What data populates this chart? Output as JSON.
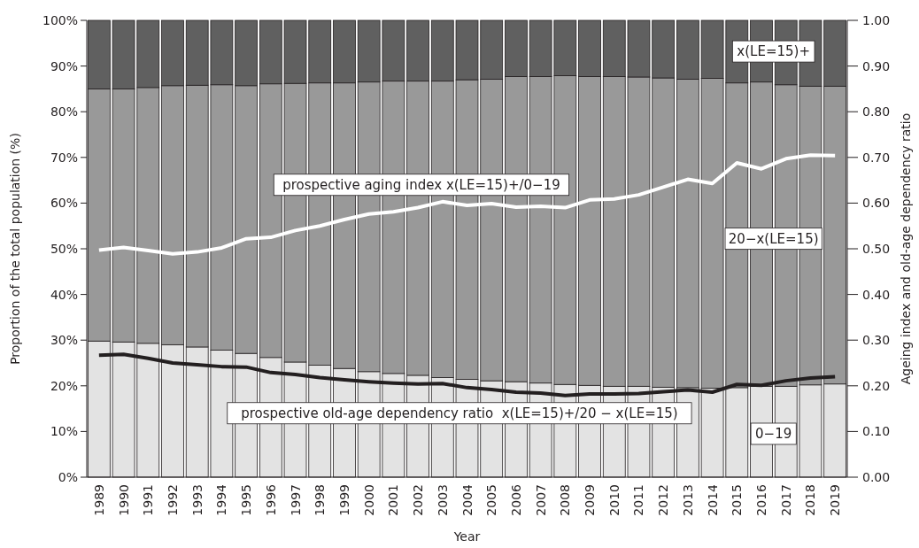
{
  "chart_data": {
    "type": "bar",
    "stacked": true,
    "xlabel": "Year",
    "ylabel": "Proportion of the total population (%)",
    "y2label": "Ageing index and old-age dependency ratio",
    "categories": [
      "1989",
      "1990",
      "1991",
      "1992",
      "1993",
      "1994",
      "1995",
      "1996",
      "1997",
      "1998",
      "1999",
      "2000",
      "2001",
      "2002",
      "2003",
      "2004",
      "2005",
      "2006",
      "2007",
      "2008",
      "2009",
      "2010",
      "2011",
      "2012",
      "2013",
      "2014",
      "2015",
      "2016",
      "2017",
      "2018",
      "2019"
    ],
    "series": [
      {
        "name": "0−19",
        "color": "#e3e3e3",
        "values": [
          29.8,
          29.6,
          29.3,
          29.0,
          28.5,
          27.8,
          27.1,
          26.2,
          25.2,
          24.5,
          23.8,
          23.1,
          22.7,
          22.3,
          21.8,
          21.4,
          21.1,
          20.9,
          20.6,
          20.3,
          20.1,
          19.9,
          19.9,
          19.7,
          19.6,
          19.5,
          19.6,
          19.9,
          19.9,
          20.2,
          20.4
        ]
      },
      {
        "name": "20−x(LE=15)",
        "color": "#999999",
        "values": [
          55.2,
          55.4,
          56.0,
          56.7,
          57.3,
          58.1,
          58.6,
          59.9,
          61.0,
          61.8,
          62.5,
          63.4,
          64.0,
          64.4,
          64.9,
          65.6,
          66.0,
          66.8,
          67.1,
          67.6,
          67.6,
          67.8,
          67.7,
          67.7,
          67.5,
          67.8,
          66.7,
          66.6,
          66.0,
          65.4,
          65.2
        ]
      },
      {
        "name": "x(LE=15)+",
        "color": "#606060",
        "values": [
          15.0,
          15.0,
          14.7,
          14.3,
          14.2,
          14.1,
          14.3,
          13.9,
          13.8,
          13.7,
          13.7,
          13.5,
          13.3,
          13.3,
          13.3,
          13.0,
          12.9,
          12.3,
          12.3,
          12.1,
          12.3,
          12.3,
          12.4,
          12.6,
          12.9,
          12.7,
          13.7,
          13.5,
          14.1,
          14.4,
          14.4
        ]
      },
      {
        "name": "prospective aging index x(LE=15)+/0−19",
        "type": "line",
        "axis": "y2",
        "color": "#ffffff",
        "values": [
          0.497,
          0.503,
          0.496,
          0.489,
          0.493,
          0.502,
          0.522,
          0.525,
          0.54,
          0.55,
          0.564,
          0.576,
          0.581,
          0.59,
          0.603,
          0.595,
          0.599,
          0.591,
          0.593,
          0.59,
          0.607,
          0.609,
          0.618,
          0.635,
          0.652,
          0.643,
          0.688,
          0.675,
          0.697,
          0.705,
          0.704
        ]
      },
      {
        "name": "prospective old-age dependency ratio  x(LE=15)+/20 − x(LE=15)",
        "type": "line",
        "axis": "y2",
        "color": "#231f20",
        "values": [
          0.267,
          0.269,
          0.26,
          0.25,
          0.246,
          0.242,
          0.241,
          0.229,
          0.225,
          0.218,
          0.213,
          0.209,
          0.206,
          0.204,
          0.205,
          0.196,
          0.192,
          0.186,
          0.184,
          0.179,
          0.182,
          0.182,
          0.183,
          0.187,
          0.191,
          0.186,
          0.203,
          0.201,
          0.211,
          0.217,
          0.22
        ]
      }
    ],
    "ylim": [
      0,
      100
    ],
    "yticks": [
      {
        "value": 0,
        "label": "0%"
      },
      {
        "value": 10,
        "label": "10%"
      },
      {
        "value": 20,
        "label": "20%"
      },
      {
        "value": 30,
        "label": "30%"
      },
      {
        "value": 40,
        "label": "40%"
      },
      {
        "value": 50,
        "label": "50%"
      },
      {
        "value": 60,
        "label": "60%"
      },
      {
        "value": 70,
        "label": "70%"
      },
      {
        "value": 80,
        "label": "80%"
      },
      {
        "value": 90,
        "label": "90%"
      },
      {
        "value": 100,
        "label": "100%"
      }
    ],
    "y2lim": [
      0,
      1
    ],
    "y2ticks": [
      {
        "value": 0,
        "label": "0.00"
      },
      {
        "value": 0.1,
        "label": "0.10"
      },
      {
        "value": 0.2,
        "label": "0.20"
      },
      {
        "value": 0.3,
        "label": "0.30"
      },
      {
        "value": 0.4,
        "label": "0.40"
      },
      {
        "value": 0.5,
        "label": "0.50"
      },
      {
        "value": 0.6,
        "label": "0.60"
      },
      {
        "value": 0.7,
        "label": "0.70"
      },
      {
        "value": 0.8,
        "label": "0.80"
      },
      {
        "value": 0.9,
        "label": "0.90"
      },
      {
        "value": 1,
        "label": "1.00"
      }
    ],
    "grid": false
  }
}
